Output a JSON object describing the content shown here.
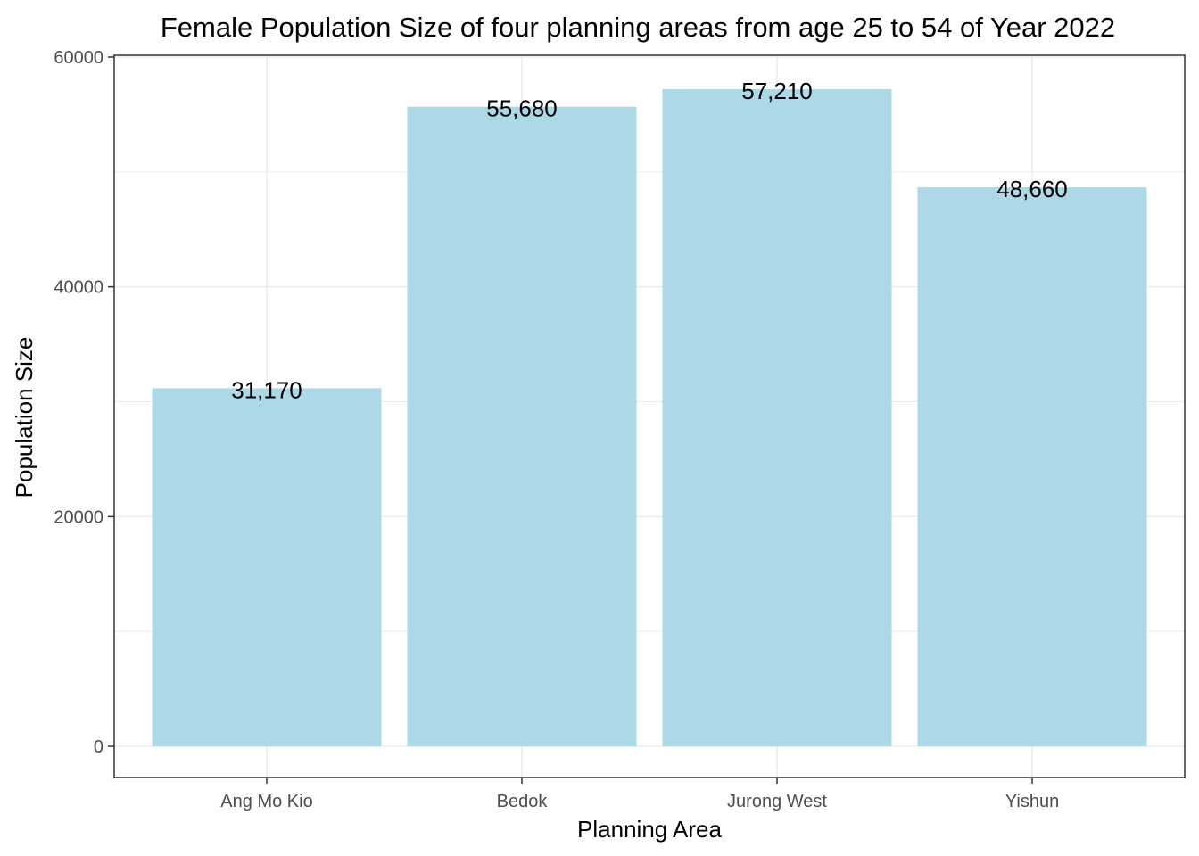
{
  "chart_data": {
    "type": "bar",
    "title": "Female Population Size of four planning areas from age 25 to 54 of Year 2022",
    "xlabel": "Planning Area",
    "ylabel": "Population Size",
    "categories": [
      "Ang Mo Kio",
      "Bedok",
      "Jurong West",
      "Yishun"
    ],
    "values": [
      31170,
      55680,
      57210,
      48660
    ],
    "data_labels": [
      "31,170",
      "55,680",
      "57,210",
      "48,660"
    ],
    "ylim": [
      0,
      60000
    ],
    "yticks": [
      0,
      20000,
      40000,
      60000
    ],
    "ytick_labels": [
      "0",
      "20000",
      "40000",
      "60000"
    ],
    "grid": true,
    "legend": "none",
    "bar_color": "#ADD8E6",
    "panel_border_color": "#333333",
    "grid_color": "#EBEBEB"
  }
}
